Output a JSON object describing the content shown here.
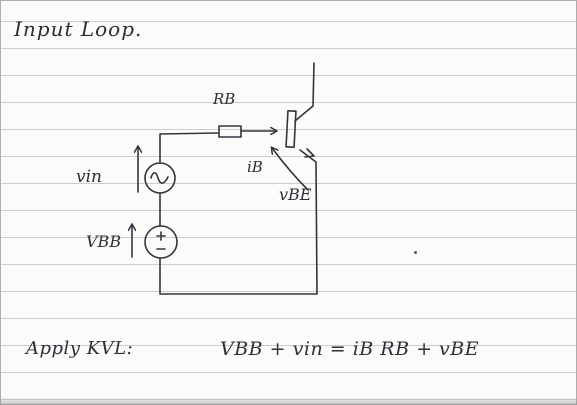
{
  "page": {
    "title": "Input Loop.",
    "paper_color": "#fbfbf9",
    "rule_color": "#c9ccd3",
    "ink_color": "#34343f"
  },
  "circuit": {
    "resistor_label": "RB",
    "ac_source_label": "vin",
    "dc_source_label": "VBB",
    "current_label": "iB",
    "voltage_label": "vBE",
    "ac_source_icon": "sine-wave-icon",
    "dc_source_icon": "battery-plus-minus-icon",
    "transistor_icon": "bjt-transistor-icon"
  },
  "equation": {
    "prefix": "Apply KVL:",
    "text": "VBB + vin = iB RB + vBE"
  }
}
